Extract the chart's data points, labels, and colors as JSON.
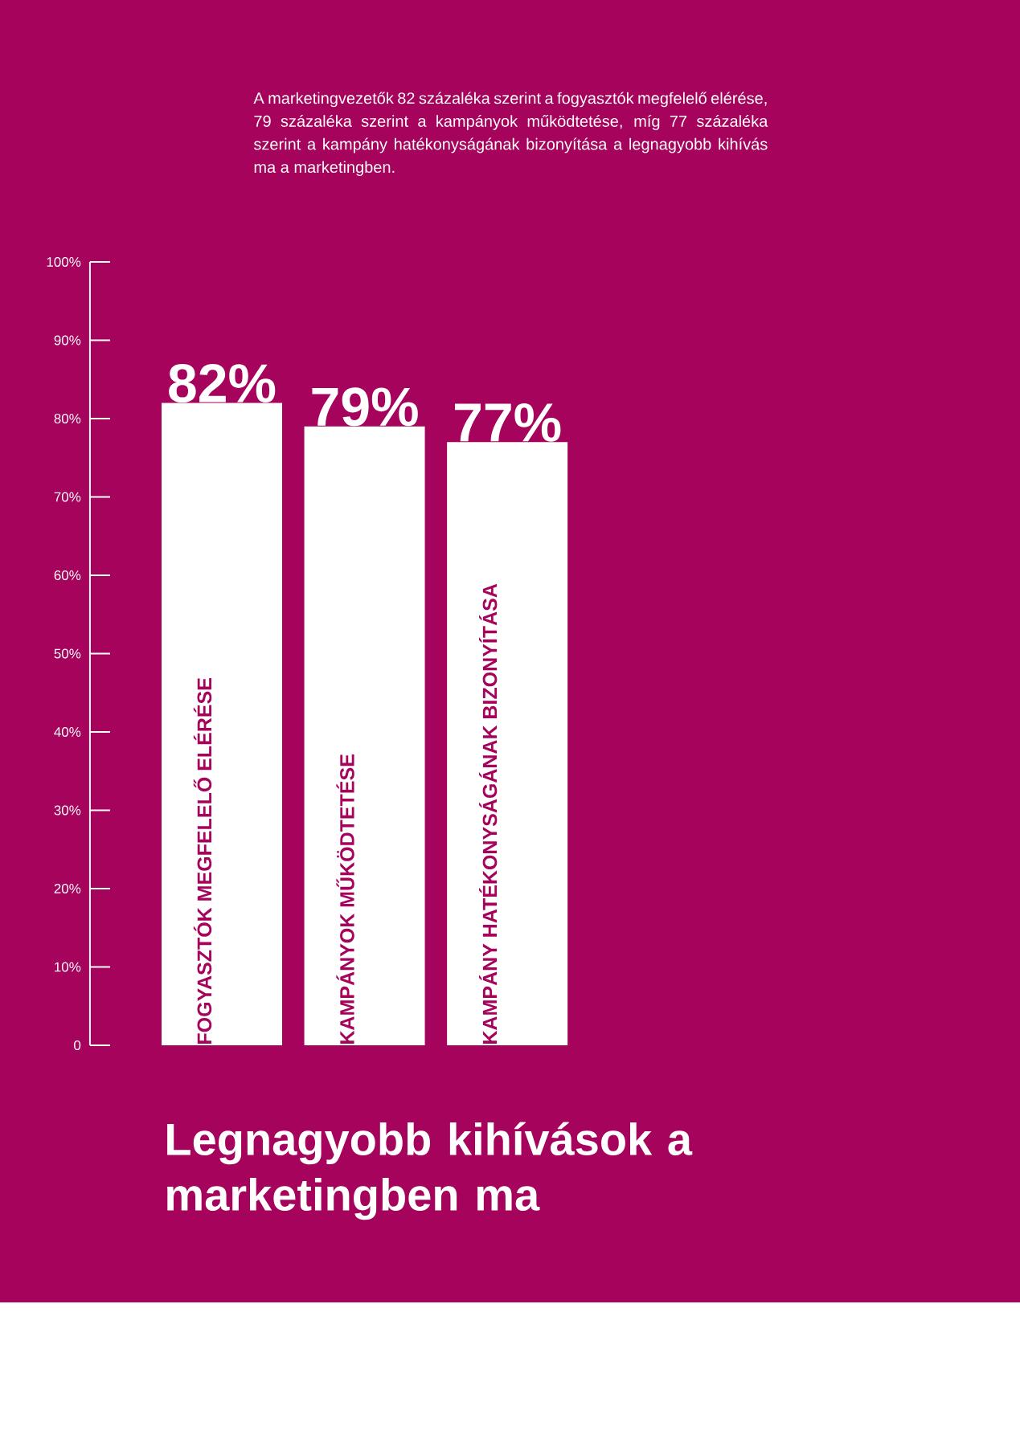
{
  "chart_data": {
    "type": "bar",
    "title": "Legnagyobb kihívások a marketingben ma",
    "subtitle": "A marketingvezetők 82 százaléka szerint a fogyasztók megfelelő elérése, 79 százaléka szerint a kampányok működtetése, míg 77 százaléka szerint a kampány hatékonyságának bizonyítása a legnagyobb kihívás ma a marketingben.",
    "categories": [
      "FOGYASZTÓK MEGFELELŐ ELÉRÉSE",
      "KAMPÁNYOK MŰKÖDTETÉSE",
      "KAMPÁNY HATÉKONYSÁGÁNAK BIZONYÍTÁSA"
    ],
    "values": [
      82,
      79,
      77
    ],
    "color": "#ffffff",
    "value_labels": [
      "82%",
      "79%",
      "77%"
    ],
    "ylim": [
      0,
      100
    ],
    "yticks": [
      0,
      {
        "value": 10,
        "label": "10%"
      },
      {
        "value": 20,
        "label": "20%"
      },
      {
        "value": 30,
        "label": "30%"
      },
      {
        "value": 40,
        "label": "40%"
      },
      {
        "value": 50,
        "label": "50%"
      },
      {
        "value": 60,
        "label": "60%"
      },
      {
        "value": 70,
        "label": "70%"
      },
      {
        "value": 80,
        "label": "80%"
      },
      {
        "value": 90,
        "label": "90%"
      },
      {
        "value": 100,
        "label": "100%"
      }
    ]
  }
}
